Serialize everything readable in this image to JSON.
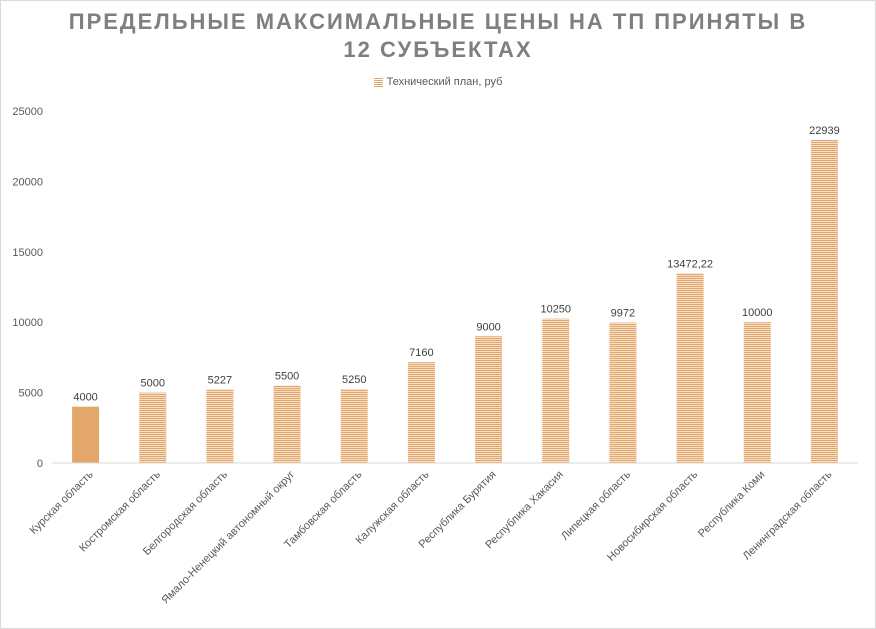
{
  "chart_data": {
    "type": "bar",
    "title": "ПРЕДЕЛЬНЫЕ МАКСИМАЛЬНЫЕ ЦЕНЫ НА ТП ПРИНЯТЫ В 12 СУБЪЕКТАХ",
    "title_lines": [
      "ПРЕДЕЛЬНЫЕ МАКСИМАЛЬНЫЕ ЦЕНЫ НА ТП ПРИНЯТЫ В",
      "12 СУБЪЕКТАХ"
    ],
    "legend_position": "top",
    "grid": false,
    "ylim": [
      0,
      25000
    ],
    "yticks": [
      0,
      5000,
      10000,
      15000,
      20000,
      25000
    ],
    "categories": [
      "Курская область",
      "Костромская область",
      "Белгородская область",
      "Ямало-Ненецкий автономный округ",
      "Тамбовская область",
      "Калужская область",
      "Республика Бурятия",
      "Республика Хакасия",
      "Липецкая область",
      "Новосибирская область",
      "Республика Коми",
      "Ленинградская область"
    ],
    "series": [
      {
        "name": "Технический план, руб",
        "values": [
          4000,
          5000,
          5227,
          5500,
          5250,
          7160,
          9000,
          10250,
          9972,
          13472.22,
          10000,
          22939
        ],
        "labels": [
          "4000",
          "5000",
          "5227",
          "5500",
          "5250",
          "7160",
          "9000",
          "10250",
          "9972",
          "13472,22",
          "10000",
          "22939"
        ]
      }
    ],
    "colors": {
      "bar": "#e3a66b",
      "axis": "#d9d9d9"
    }
  }
}
